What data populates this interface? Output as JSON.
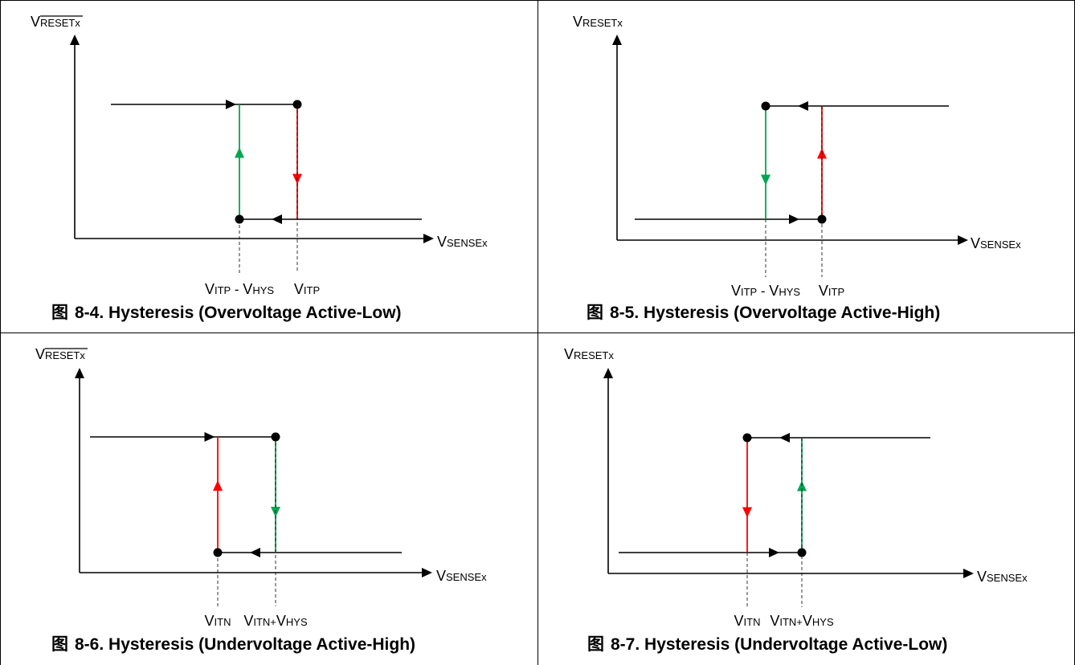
{
  "figures": [
    {
      "number": "8-4",
      "caption_prefix": "图",
      "caption": "Hysteresis (Overvoltage Active-Low)",
      "y_axis": {
        "main": "V",
        "sub": "RESETx",
        "overbar": true
      },
      "x_axis": {
        "main": "V",
        "sub": "SENSEx"
      },
      "left_marker": {
        "parts": [
          {
            "main": "V",
            "sub": "ITP"
          },
          {
            "text": " - "
          },
          {
            "main": "V",
            "sub": "HYS"
          }
        ]
      },
      "right_marker": {
        "parts": [
          {
            "main": "V",
            "sub": "ITP"
          }
        ]
      },
      "left_transition": {
        "color": "#00a651",
        "direction": "up"
      },
      "right_transition": {
        "color": "#ff0000",
        "direction": "down"
      }
    },
    {
      "number": "8-5",
      "caption_prefix": "图",
      "caption": "Hysteresis (Overvoltage Active-High)",
      "y_axis": {
        "main": "V",
        "sub": "RESETx",
        "overbar": false
      },
      "x_axis": {
        "main": "V",
        "sub": "SENSEx"
      },
      "left_marker": {
        "parts": [
          {
            "main": "V",
            "sub": "ITP"
          },
          {
            "text": " - "
          },
          {
            "main": "V",
            "sub": "HYS"
          }
        ]
      },
      "right_marker": {
        "parts": [
          {
            "main": "V",
            "sub": "ITP"
          }
        ]
      },
      "left_transition": {
        "color": "#00a651",
        "direction": "down"
      },
      "right_transition": {
        "color": "#ff0000",
        "direction": "up"
      }
    },
    {
      "number": "8-6",
      "caption_prefix": "图",
      "caption": "Hysteresis (Undervoltage Active-High)",
      "y_axis": {
        "main": "V",
        "sub": "RESETx",
        "overbar": true
      },
      "x_axis": {
        "main": "V",
        "sub": "SENSEx"
      },
      "left_marker": {
        "parts": [
          {
            "main": "V",
            "sub": "ITN"
          }
        ]
      },
      "right_marker": {
        "parts": [
          {
            "main": "V",
            "sub": "ITN+"
          },
          {
            "main": "V",
            "sub": "HYS"
          }
        ]
      },
      "left_transition": {
        "color": "#ff0000",
        "direction": "up"
      },
      "right_transition": {
        "color": "#00a651",
        "direction": "down"
      }
    },
    {
      "number": "8-7",
      "caption_prefix": "图",
      "caption": "Hysteresis (Undervoltage Active-Low)",
      "y_axis": {
        "main": "V",
        "sub": "RESETx",
        "overbar": false
      },
      "x_axis": {
        "main": "V",
        "sub": "SENSEx"
      },
      "left_marker": {
        "parts": [
          {
            "main": "V",
            "sub": "ITN"
          }
        ]
      },
      "right_marker": {
        "parts": [
          {
            "main": "V",
            "sub": "ITN+"
          },
          {
            "main": "V",
            "sub": "HYS"
          }
        ]
      },
      "left_transition": {
        "color": "#ff0000",
        "direction": "down"
      },
      "right_transition": {
        "color": "#00a651",
        "direction": "up"
      }
    }
  ]
}
